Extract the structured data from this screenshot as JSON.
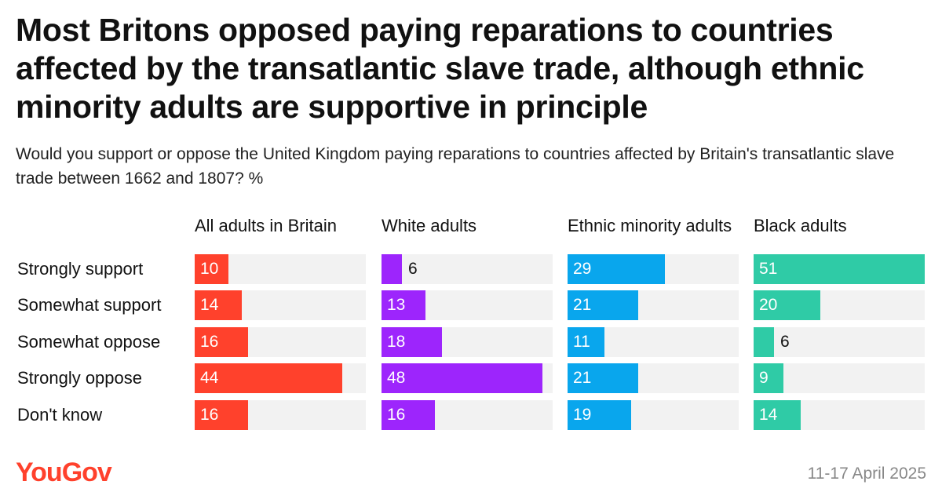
{
  "title": "Most Britons opposed paying reparations to countries affected by the transatlantic slave trade, although ethnic minority adults are supportive in principle",
  "subtitle": "Would you support or oppose the United Kingdom paying reparations to countries affected by Britain's transatlantic slave trade between 1662 and 1807? %",
  "logo": "YouGov",
  "date": "11-17 April 2025",
  "chart_data": {
    "type": "bar",
    "orientation": "horizontal",
    "categories": [
      "Strongly support",
      "Somewhat support",
      "Somewhat oppose",
      "Strongly oppose",
      "Don't know"
    ],
    "xlim": [
      0,
      51
    ],
    "grid": false,
    "series": [
      {
        "name": "All adults in Britain",
        "color": "#ff412c",
        "values": [
          10,
          14,
          16,
          44,
          16
        ]
      },
      {
        "name": "White adults",
        "color": "#9d25fc",
        "values": [
          6,
          13,
          18,
          48,
          16
        ]
      },
      {
        "name": "Ethnic minority adults",
        "color": "#09a6ed",
        "values": [
          29,
          21,
          11,
          21,
          19
        ]
      },
      {
        "name": "Black adults",
        "color": "#2fcba6",
        "values": [
          51,
          20,
          6,
          9,
          14
        ]
      }
    ]
  }
}
